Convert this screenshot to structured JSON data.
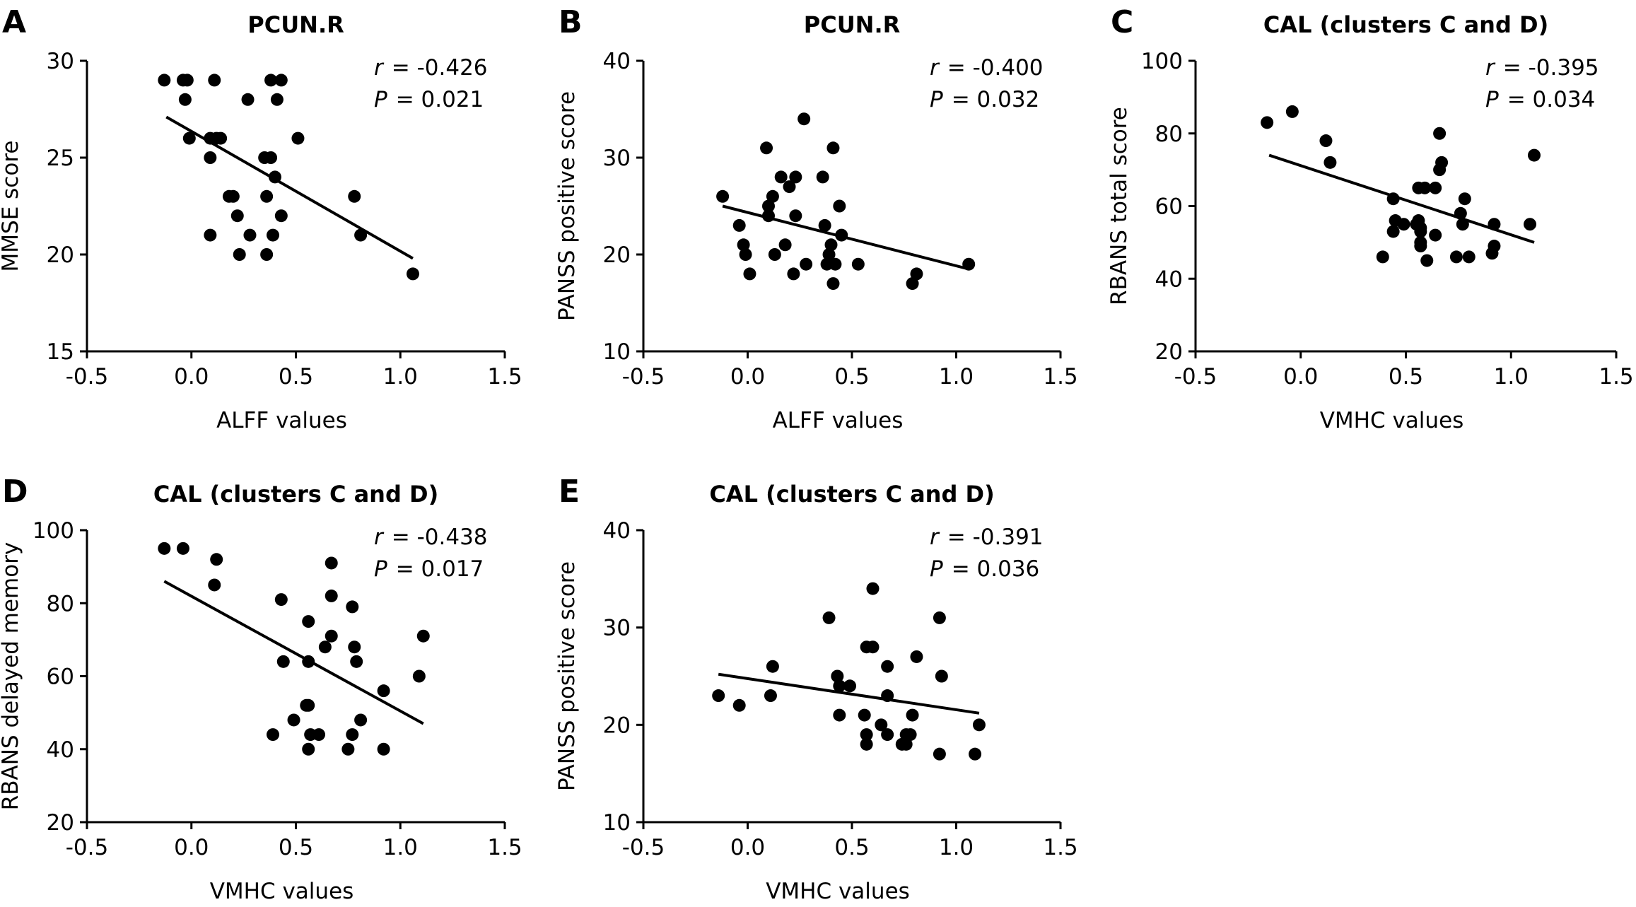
{
  "chart_data": [
    {
      "panel": "A",
      "type": "scatter",
      "title": "PCUN.R",
      "xlabel": "ALFF values",
      "ylabel": "MMSE score",
      "xlim": [
        -0.5,
        1.5
      ],
      "ylim": [
        15,
        30
      ],
      "xticks": [
        -0.5,
        0.0,
        0.5,
        1.0,
        1.5
      ],
      "yticks": [
        15,
        20,
        25,
        30
      ],
      "stats": {
        "r_symbol": "r",
        "r": "= -0.426",
        "p_symbol": "P",
        "p": "= 0.021"
      },
      "regression": {
        "x": [
          -0.12,
          1.06
        ],
        "y": [
          27.1,
          19.8
        ]
      },
      "points": [
        {
          "x": -0.13,
          "y": 29
        },
        {
          "x": -0.04,
          "y": 29
        },
        {
          "x": -0.02,
          "y": 29
        },
        {
          "x": 0.11,
          "y": 29
        },
        {
          "x": 0.38,
          "y": 29
        },
        {
          "x": 0.43,
          "y": 29
        },
        {
          "x": -0.03,
          "y": 28
        },
        {
          "x": 0.27,
          "y": 28
        },
        {
          "x": 0.41,
          "y": 28
        },
        {
          "x": -0.01,
          "y": 26
        },
        {
          "x": 0.09,
          "y": 26
        },
        {
          "x": 0.12,
          "y": 26
        },
        {
          "x": 0.14,
          "y": 26
        },
        {
          "x": 0.51,
          "y": 26
        },
        {
          "x": 0.09,
          "y": 25
        },
        {
          "x": 0.35,
          "y": 25
        },
        {
          "x": 0.38,
          "y": 25
        },
        {
          "x": 0.4,
          "y": 24
        },
        {
          "x": 0.18,
          "y": 23
        },
        {
          "x": 0.2,
          "y": 23
        },
        {
          "x": 0.36,
          "y": 23
        },
        {
          "x": 0.78,
          "y": 23
        },
        {
          "x": 0.22,
          "y": 22
        },
        {
          "x": 0.43,
          "y": 22
        },
        {
          "x": 0.09,
          "y": 21
        },
        {
          "x": 0.28,
          "y": 21
        },
        {
          "x": 0.39,
          "y": 21
        },
        {
          "x": 0.81,
          "y": 21
        },
        {
          "x": 0.23,
          "y": 20
        },
        {
          "x": 0.36,
          "y": 20
        },
        {
          "x": 1.06,
          "y": 19
        }
      ]
    },
    {
      "panel": "B",
      "type": "scatter",
      "title": "PCUN.R",
      "xlabel": "ALFF values",
      "ylabel": "PANSS positive score",
      "xlim": [
        -0.5,
        1.5
      ],
      "ylim": [
        10,
        40
      ],
      "xticks": [
        -0.5,
        0.0,
        0.5,
        1.0,
        1.5
      ],
      "yticks": [
        10,
        20,
        30,
        40
      ],
      "stats": {
        "r_symbol": "r",
        "r": "= -0.400",
        "p_symbol": "P",
        "p": "= 0.032"
      },
      "regression": {
        "x": [
          -0.12,
          1.06
        ],
        "y": [
          25.0,
          18.5
        ]
      },
      "points": [
        {
          "x": 0.27,
          "y": 34
        },
        {
          "x": 0.09,
          "y": 31
        },
        {
          "x": 0.41,
          "y": 31
        },
        {
          "x": 0.16,
          "y": 28
        },
        {
          "x": 0.23,
          "y": 28
        },
        {
          "x": 0.36,
          "y": 28
        },
        {
          "x": 0.2,
          "y": 27
        },
        {
          "x": -0.12,
          "y": 26
        },
        {
          "x": 0.12,
          "y": 26
        },
        {
          "x": 0.1,
          "y": 25
        },
        {
          "x": 0.44,
          "y": 25
        },
        {
          "x": 0.1,
          "y": 24
        },
        {
          "x": 0.23,
          "y": 24
        },
        {
          "x": -0.04,
          "y": 23
        },
        {
          "x": 0.37,
          "y": 23
        },
        {
          "x": 0.45,
          "y": 22
        },
        {
          "x": -0.02,
          "y": 21
        },
        {
          "x": 0.18,
          "y": 21
        },
        {
          "x": 0.4,
          "y": 21
        },
        {
          "x": -0.01,
          "y": 20
        },
        {
          "x": 0.13,
          "y": 20
        },
        {
          "x": 0.39,
          "y": 20
        },
        {
          "x": 0.28,
          "y": 19
        },
        {
          "x": 0.38,
          "y": 19
        },
        {
          "x": 0.42,
          "y": 19
        },
        {
          "x": 0.53,
          "y": 19
        },
        {
          "x": 1.06,
          "y": 19
        },
        {
          "x": 0.01,
          "y": 18
        },
        {
          "x": 0.22,
          "y": 18
        },
        {
          "x": 0.81,
          "y": 18
        },
        {
          "x": 0.41,
          "y": 17
        },
        {
          "x": 0.79,
          "y": 17
        }
      ]
    },
    {
      "panel": "C",
      "type": "scatter",
      "title": "CAL (clusters C and D)",
      "xlabel": "VMHC values",
      "ylabel": "RBANS total score",
      "xlim": [
        -0.5,
        1.5
      ],
      "ylim": [
        20,
        100
      ],
      "xticks": [
        -0.5,
        0.0,
        0.5,
        1.0,
        1.5
      ],
      "yticks": [
        20,
        40,
        60,
        80,
        100
      ],
      "stats": {
        "r_symbol": "r",
        "r": "= -0.395",
        "p_symbol": "P",
        "p": "= 0.034"
      },
      "regression": {
        "x": [
          -0.15,
          1.11
        ],
        "y": [
          74,
          50
        ]
      },
      "points": [
        {
          "x": -0.04,
          "y": 86
        },
        {
          "x": -0.16,
          "y": 83
        },
        {
          "x": 0.66,
          "y": 80
        },
        {
          "x": 0.12,
          "y": 78
        },
        {
          "x": 1.11,
          "y": 74
        },
        {
          "x": 0.14,
          "y": 72
        },
        {
          "x": 0.67,
          "y": 72
        },
        {
          "x": 0.66,
          "y": 70
        },
        {
          "x": 0.56,
          "y": 65
        },
        {
          "x": 0.59,
          "y": 65
        },
        {
          "x": 0.64,
          "y": 65
        },
        {
          "x": 0.44,
          "y": 62
        },
        {
          "x": 0.78,
          "y": 62
        },
        {
          "x": 0.76,
          "y": 58
        },
        {
          "x": 0.56,
          "y": 56
        },
        {
          "x": 0.45,
          "y": 56
        },
        {
          "x": 0.49,
          "y": 55
        },
        {
          "x": 0.55,
          "y": 55
        },
        {
          "x": 0.77,
          "y": 55
        },
        {
          "x": 0.92,
          "y": 55
        },
        {
          "x": 1.09,
          "y": 55
        },
        {
          "x": 0.57,
          "y": 54
        },
        {
          "x": 0.44,
          "y": 53
        },
        {
          "x": 0.57,
          "y": 53
        },
        {
          "x": 0.64,
          "y": 52
        },
        {
          "x": 0.57,
          "y": 50
        },
        {
          "x": 0.57,
          "y": 49
        },
        {
          "x": 0.92,
          "y": 49
        },
        {
          "x": 0.91,
          "y": 47
        },
        {
          "x": 0.39,
          "y": 46
        },
        {
          "x": 0.74,
          "y": 46
        },
        {
          "x": 0.8,
          "y": 46
        },
        {
          "x": 0.6,
          "y": 45
        }
      ]
    },
    {
      "panel": "D",
      "type": "scatter",
      "title": "CAL (clusters C and D)",
      "xlabel": "VMHC values",
      "ylabel": "RBANS delayed memory",
      "xlim": [
        -0.5,
        1.5
      ],
      "ylim": [
        20,
        100
      ],
      "xticks": [
        -0.5,
        0.0,
        0.5,
        1.0,
        1.5
      ],
      "yticks": [
        20,
        40,
        60,
        80,
        100
      ],
      "stats": {
        "r_symbol": "r",
        "r": "= -0.438",
        "p_symbol": "P",
        "p": "= 0.017"
      },
      "regression": {
        "x": [
          -0.13,
          1.11
        ],
        "y": [
          86,
          47
        ]
      },
      "points": [
        {
          "x": -0.13,
          "y": 95
        },
        {
          "x": -0.04,
          "y": 95
        },
        {
          "x": 0.12,
          "y": 92
        },
        {
          "x": 0.67,
          "y": 91
        },
        {
          "x": 0.11,
          "y": 85
        },
        {
          "x": 0.67,
          "y": 82
        },
        {
          "x": 0.43,
          "y": 81
        },
        {
          "x": 0.77,
          "y": 79
        },
        {
          "x": 0.56,
          "y": 75
        },
        {
          "x": 0.67,
          "y": 71
        },
        {
          "x": 1.11,
          "y": 71
        },
        {
          "x": 0.64,
          "y": 68
        },
        {
          "x": 0.78,
          "y": 68
        },
        {
          "x": 0.44,
          "y": 64
        },
        {
          "x": 0.56,
          "y": 64
        },
        {
          "x": 0.79,
          "y": 64
        },
        {
          "x": 1.09,
          "y": 60
        },
        {
          "x": 0.92,
          "y": 56
        },
        {
          "x": 0.55,
          "y": 52
        },
        {
          "x": 0.56,
          "y": 52
        },
        {
          "x": 0.49,
          "y": 48
        },
        {
          "x": 0.81,
          "y": 48
        },
        {
          "x": 0.39,
          "y": 44
        },
        {
          "x": 0.57,
          "y": 44
        },
        {
          "x": 0.61,
          "y": 44
        },
        {
          "x": 0.77,
          "y": 44
        },
        {
          "x": 0.56,
          "y": 40
        },
        {
          "x": 0.75,
          "y": 40
        },
        {
          "x": 0.92,
          "y": 40
        }
      ]
    },
    {
      "panel": "E",
      "type": "scatter",
      "title": "CAL (clusters C and D)",
      "xlabel": "VMHC values",
      "ylabel": "PANSS positive score",
      "xlim": [
        -0.5,
        1.5
      ],
      "ylim": [
        10,
        40
      ],
      "xticks": [
        -0.5,
        0.0,
        0.5,
        1.0,
        1.5
      ],
      "yticks": [
        10,
        20,
        30,
        40
      ],
      "stats": {
        "r_symbol": "r",
        "r": "= -0.391",
        "p_symbol": "P",
        "p": "= 0.036"
      },
      "regression": {
        "x": [
          -0.14,
          1.11
        ],
        "y": [
          25.2,
          21.2
        ]
      },
      "points": [
        {
          "x": 0.6,
          "y": 34
        },
        {
          "x": 0.39,
          "y": 31
        },
        {
          "x": 0.92,
          "y": 31
        },
        {
          "x": 0.57,
          "y": 28
        },
        {
          "x": 0.6,
          "y": 28
        },
        {
          "x": 0.81,
          "y": 27
        },
        {
          "x": 0.12,
          "y": 26
        },
        {
          "x": 0.67,
          "y": 26
        },
        {
          "x": 0.43,
          "y": 25
        },
        {
          "x": 0.93,
          "y": 25
        },
        {
          "x": 0.44,
          "y": 24
        },
        {
          "x": 0.49,
          "y": 24
        },
        {
          "x": -0.14,
          "y": 23
        },
        {
          "x": 0.11,
          "y": 23
        },
        {
          "x": 0.67,
          "y": 23
        },
        {
          "x": -0.04,
          "y": 22
        },
        {
          "x": 0.44,
          "y": 21
        },
        {
          "x": 0.56,
          "y": 21
        },
        {
          "x": 0.79,
          "y": 21
        },
        {
          "x": 0.64,
          "y": 20
        },
        {
          "x": 1.11,
          "y": 20
        },
        {
          "x": 0.57,
          "y": 19
        },
        {
          "x": 0.67,
          "y": 19
        },
        {
          "x": 0.76,
          "y": 19
        },
        {
          "x": 0.78,
          "y": 19
        },
        {
          "x": 0.57,
          "y": 18
        },
        {
          "x": 0.74,
          "y": 18
        },
        {
          "x": 0.76,
          "y": 18
        },
        {
          "x": 0.92,
          "y": 17
        },
        {
          "x": 1.09,
          "y": 17
        }
      ]
    }
  ]
}
